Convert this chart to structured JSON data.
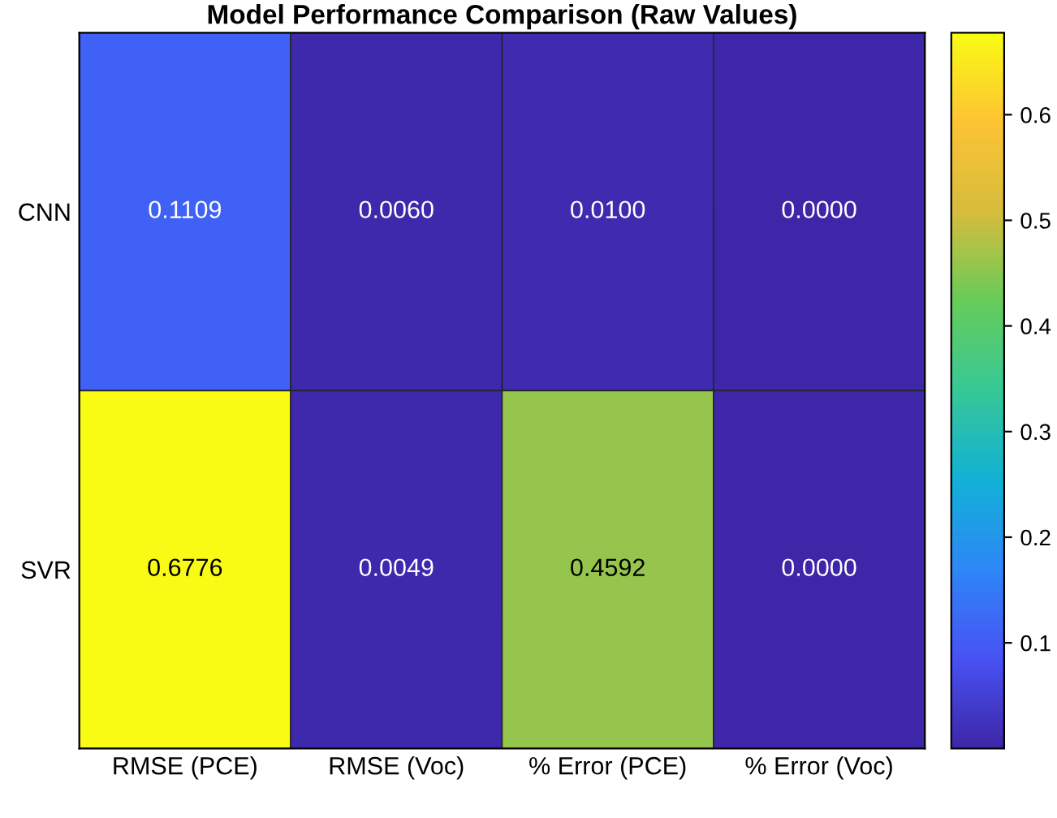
{
  "chart_data": {
    "type": "heatmap",
    "title": "Model Performance Comparison (Raw Values)",
    "categories": [
      "RMSE (PCE)",
      "RMSE (Voc)",
      "% Error (PCE)",
      "% Error (Voc)"
    ],
    "y_categories": [
      "CNN",
      "SVR"
    ],
    "cells": [
      [
        0.1109,
        0.006,
        0.01,
        0.0
      ],
      [
        0.6776,
        0.0049,
        0.4592,
        0.0
      ]
    ],
    "cell_labels": [
      [
        "0.1109",
        "0.0060",
        "0.0100",
        "0.0000"
      ],
      [
        "0.6776",
        "0.0049",
        "0.4592",
        "0.0000"
      ]
    ],
    "clim": [
      0,
      0.6776
    ],
    "cticks": [
      0.1,
      0.2,
      0.3,
      0.4,
      0.5,
      0.6
    ]
  }
}
